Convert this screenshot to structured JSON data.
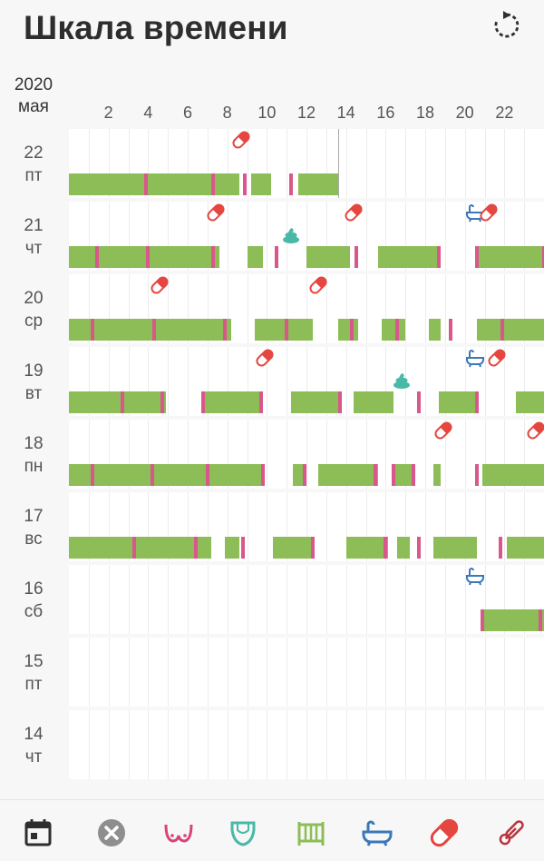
{
  "header": {
    "title": "Шкала времени"
  },
  "year": "2020",
  "month": "мая",
  "hours": [
    "2",
    "4",
    "6",
    "8",
    "10",
    "12",
    "14",
    "16",
    "18",
    "20",
    "22"
  ],
  "days": [
    {
      "day": "22",
      "dow": "пт"
    },
    {
      "day": "21",
      "dow": "чт"
    },
    {
      "day": "20",
      "dow": "ср"
    },
    {
      "day": "19",
      "dow": "вт"
    },
    {
      "day": "18",
      "dow": "пн"
    },
    {
      "day": "17",
      "dow": "вс"
    },
    {
      "day": "16",
      "dow": "сб"
    },
    {
      "day": "15",
      "dow": "пт"
    },
    {
      "day": "14",
      "dow": "чт"
    }
  ],
  "timeline": {
    "now_hour": 13.6,
    "rows": [
      {
        "sleep": [
          [
            0,
            8.6
          ],
          [
            9.2,
            10.2
          ],
          [
            11.6,
            13.6
          ]
        ],
        "marks": [
          3.9,
          7.3,
          8.9,
          11.2
        ],
        "events": [
          {
            "type": "pill",
            "h": 8.7
          }
        ]
      },
      {
        "sleep": [
          [
            0,
            7.6
          ],
          [
            9,
            9.8
          ],
          [
            12,
            14.2
          ],
          [
            15.6,
            18.8
          ],
          [
            20.6,
            24
          ]
        ],
        "marks": [
          1.4,
          4.0,
          7.3,
          10.5,
          14.5,
          18.7,
          20.6,
          24.0
        ],
        "events": [
          {
            "type": "pill",
            "h": 7.4
          },
          {
            "type": "poop",
            "h": 11.2,
            "low": true
          },
          {
            "type": "pill",
            "h": 14.4
          },
          {
            "type": "bath",
            "h": 20.5
          },
          {
            "type": "pill",
            "h": 21.2
          }
        ]
      },
      {
        "sleep": [
          [
            0,
            8.2
          ],
          [
            9.4,
            12.3
          ],
          [
            13.6,
            14.6
          ],
          [
            15.8,
            17
          ],
          [
            18.2,
            18.8
          ],
          [
            20.6,
            24
          ]
        ],
        "marks": [
          1.2,
          4.3,
          7.9,
          11.0,
          14.3,
          16.6,
          19.3,
          21.9
        ],
        "events": [
          {
            "type": "pill",
            "h": 4.6
          },
          {
            "type": "pill",
            "h": 12.6
          }
        ]
      },
      {
        "sleep": [
          [
            0,
            4.9
          ],
          [
            6.7,
            9.8
          ],
          [
            11.2,
            13.6
          ],
          [
            14.4,
            16.4
          ],
          [
            18.7,
            20.5
          ],
          [
            22.6,
            24
          ]
        ],
        "marks": [
          2.7,
          4.7,
          6.8,
          9.7,
          13.7,
          17.7,
          20.6
        ],
        "events": [
          {
            "type": "pill",
            "h": 9.9
          },
          {
            "type": "bath",
            "h": 20.5
          },
          {
            "type": "pill",
            "h": 21.6
          },
          {
            "type": "poop",
            "h": 16.8,
            "low": true
          }
        ]
      },
      {
        "sleep": [
          [
            0,
            9.9
          ],
          [
            11.3,
            11.9
          ],
          [
            12.6,
            15.6
          ],
          [
            16.3,
            17.4
          ],
          [
            18.4,
            18.8
          ],
          [
            20.9,
            24
          ]
        ],
        "marks": [
          1.2,
          4.2,
          7.0,
          9.8,
          11.9,
          15.5,
          16.4,
          17.4,
          20.6
        ],
        "events": [
          {
            "type": "pill",
            "h": 18.9
          },
          {
            "type": "pill",
            "h": 23.6
          }
        ]
      },
      {
        "sleep": [
          [
            0,
            7.2
          ],
          [
            7.9,
            8.6
          ],
          [
            10.3,
            12.4
          ],
          [
            14.0,
            16.1
          ],
          [
            16.6,
            17.2
          ],
          [
            18.4,
            20.6
          ],
          [
            22.1,
            24
          ]
        ],
        "marks": [
          3.3,
          6.4,
          8.8,
          12.3,
          16.0,
          17.7,
          21.8
        ],
        "events": []
      },
      {
        "sleep": [
          [
            20.9,
            24
          ]
        ],
        "marks": [
          20.9,
          23.8
        ],
        "events": [
          {
            "type": "bath",
            "h": 20.5
          }
        ]
      },
      {
        "sleep": [],
        "marks": [],
        "events": []
      },
      {
        "sleep": [],
        "marks": [],
        "events": []
      }
    ]
  },
  "bottom_bar": {
    "tabs": [
      "calendar-icon",
      "cancel-icon",
      "breastfeeding-icon",
      "diaper-icon",
      "crib-icon",
      "bath-icon",
      "medicine-icon",
      "thermometer-icon"
    ]
  },
  "colors": {
    "sleep": "#8cbd56",
    "mark": "#d9578b",
    "pill": "#e5463f",
    "bath": "#3a78b8",
    "poop": "#48b9a7",
    "pink": "#d9437a",
    "teal": "#48b9a7",
    "green": "#8cbd56",
    "dark": "#2e2e2e"
  }
}
